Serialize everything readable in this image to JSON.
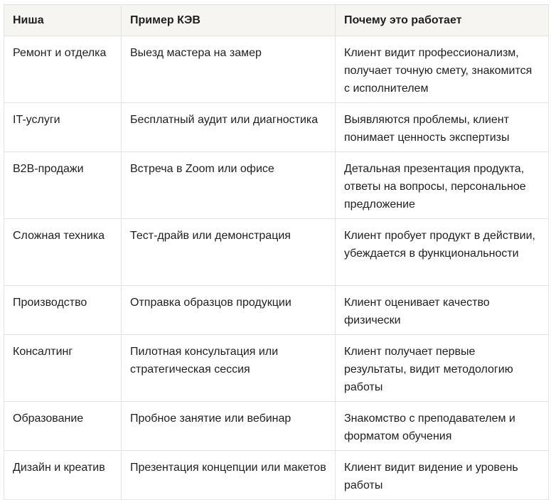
{
  "headers": [
    "Ниша",
    "Пример КЭВ",
    "Почему это работает"
  ],
  "rows": [
    [
      "Ремонт и отделка",
      "Выезд мастера на замер",
      "Клиент видит профессионализм, получает точную смету, знакомится с исполнителем"
    ],
    [
      "IT-услуги",
      "Бесплатный аудит или диагностика",
      "Выявляются проблемы, клиент понимает ценность экспертизы"
    ],
    [
      "B2B-продажи",
      "Встреча в Zoom или офисе",
      "Детальная презентация продукта, ответы на вопросы, персональное предложение"
    ],
    [
      "Сложная техника",
      "Тест-драйв или демонстрация",
      "Клиент пробует продукт в действии, убеждается в функциональности"
    ],
    [
      "Производство",
      "Отправка образцов продукции",
      "Клиент оценивает качество физически"
    ],
    [
      "Консалтинг",
      "Пилотная консультация или стратегическая сессия",
      "Клиент получает первые результаты, видит методологию работы"
    ],
    [
      "Образование",
      "Пробное занятие или вебинар",
      "Знакомство с преподавателем и форматом обучения"
    ],
    [
      "Дизайн и креатив",
      "Презентация концепции или макетов",
      "Клиент видит видение и уровень работы"
    ]
  ]
}
